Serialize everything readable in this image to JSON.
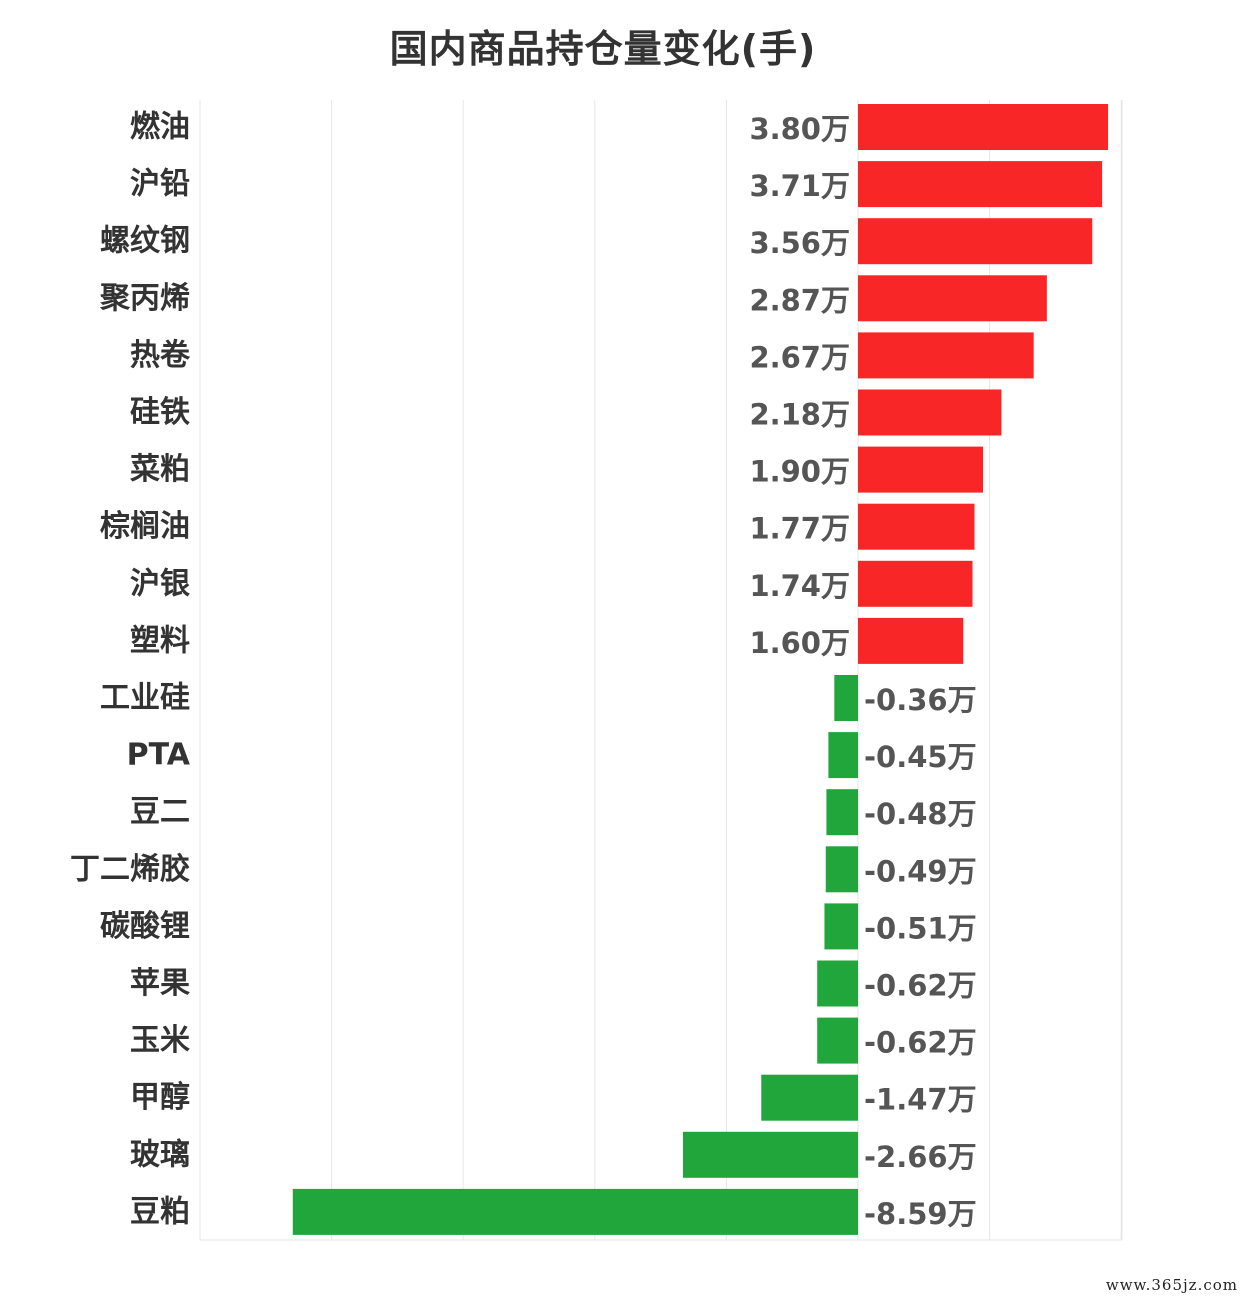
{
  "chart_data": {
    "type": "bar",
    "orientation": "horizontal",
    "title": "国内商品持仓量变化(手)",
    "unit_suffix": "万",
    "categories": [
      "燃油",
      "沪铅",
      "螺纹钢",
      "聚丙烯",
      "热卷",
      "硅铁",
      "菜粕",
      "棕榈油",
      "沪银",
      "塑料",
      "工业硅",
      "PTA",
      "豆二",
      "丁二烯胶",
      "碳酸锂",
      "苹果",
      "玉米",
      "甲醇",
      "玻璃",
      "豆粕"
    ],
    "values": [
      3.8,
      3.71,
      3.56,
      2.87,
      2.67,
      2.18,
      1.9,
      1.77,
      1.74,
      1.6,
      -0.36,
      -0.45,
      -0.48,
      -0.49,
      -0.51,
      -0.62,
      -0.62,
      -1.47,
      -2.66,
      -8.59
    ],
    "labels": [
      "3.80万",
      "3.71万",
      "3.56万",
      "2.87万",
      "2.67万",
      "2.18万",
      "1.90万",
      "1.77万",
      "1.74万",
      "1.60万",
      "-0.36万",
      "-0.45万",
      "-0.48万",
      "-0.49万",
      "-0.51万",
      "-0.62万",
      "-0.62万",
      "-1.47万",
      "-2.66万",
      "-8.59万"
    ],
    "xlim": [
      -10,
      4
    ],
    "grid": true,
    "legend": "none",
    "colors": {
      "positive": "#f82626",
      "negative": "#21a63c",
      "grid": "#e6e6e6",
      "category_text": "#333333",
      "value_text": "#555555"
    }
  },
  "watermark": "www.365jz.com"
}
